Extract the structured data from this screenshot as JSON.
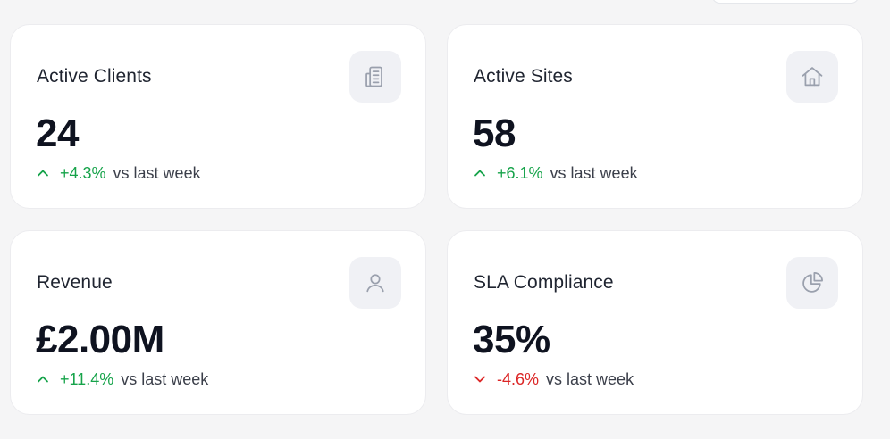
{
  "cards": [
    {
      "title": "Active Clients",
      "value": "24",
      "change": "+4.3%",
      "direction": "up",
      "suffix": "vs last week",
      "icon": "building-icon"
    },
    {
      "title": "Active Sites",
      "value": "58",
      "change": "+6.1%",
      "direction": "up",
      "suffix": "vs last week",
      "icon": "home-icon"
    },
    {
      "title": "Revenue",
      "value": "£2.00M",
      "change": "+11.4%",
      "direction": "up",
      "suffix": "vs last week",
      "icon": "user-icon"
    },
    {
      "title": "SLA Compliance",
      "value": "35%",
      "change": "-4.6%",
      "direction": "down",
      "suffix": "vs last week",
      "icon": "pie-chart-icon"
    }
  ],
  "colors": {
    "up": "#16a34a",
    "down": "#dc2626",
    "icon": "#9aa0ad"
  }
}
